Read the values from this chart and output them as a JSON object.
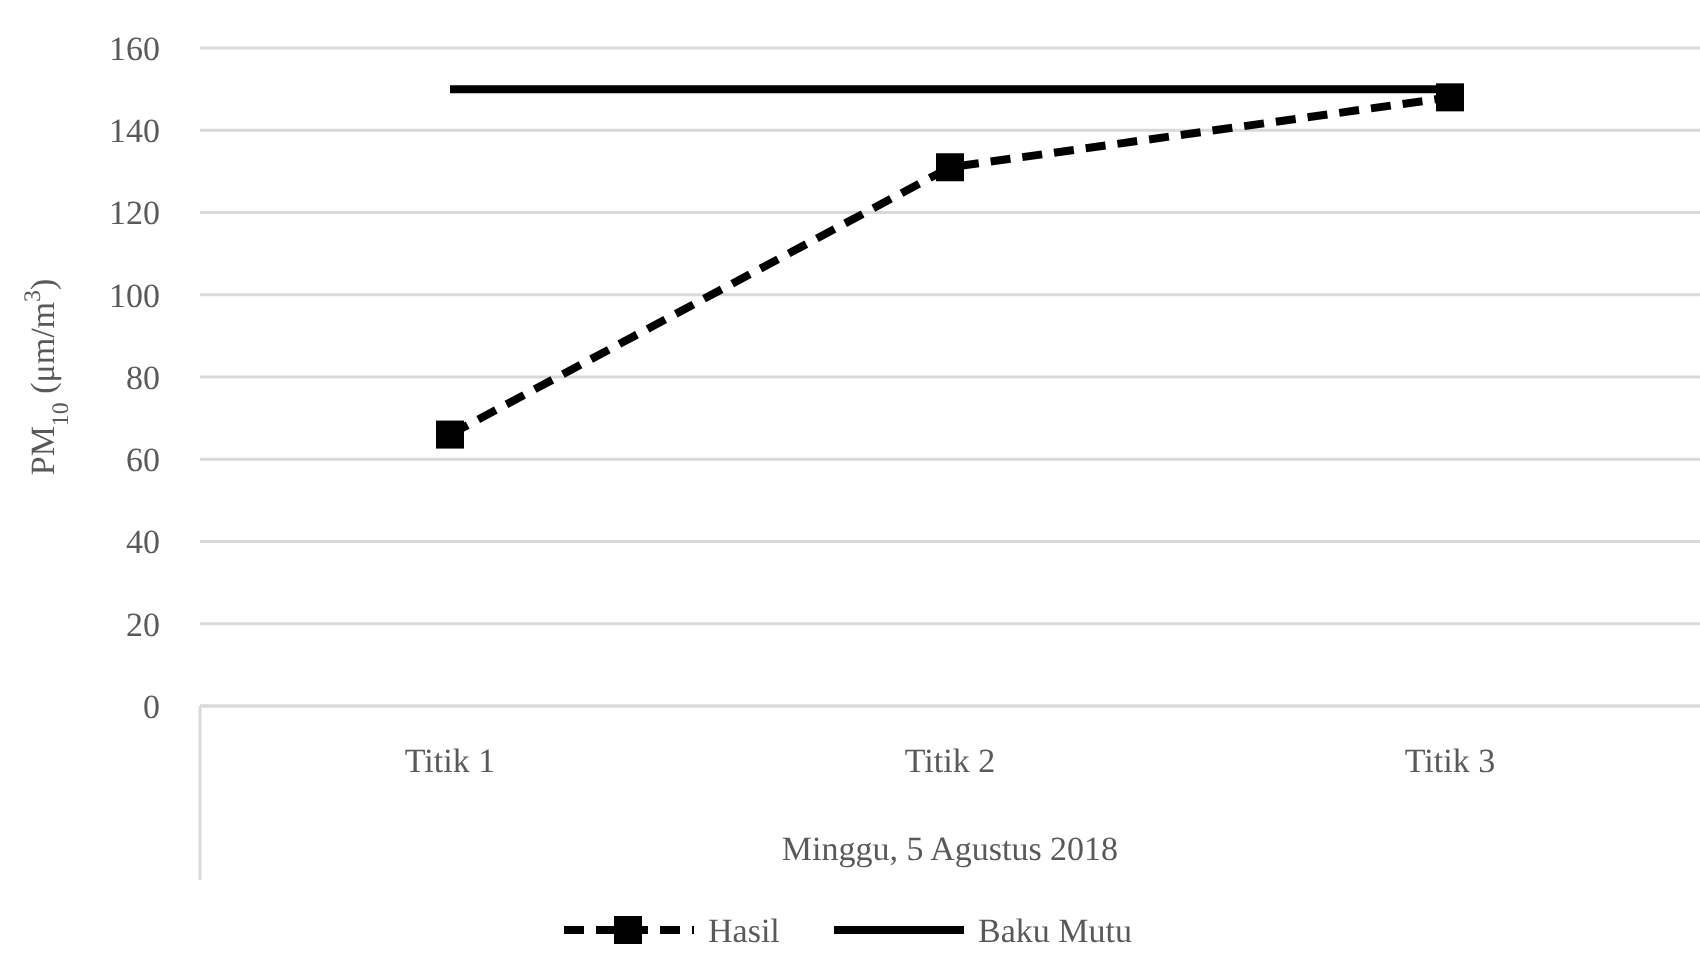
{
  "chart_data": {
    "type": "line",
    "categories": [
      "Titik 1",
      "Titik 2",
      "Titik 3"
    ],
    "xlabel": "Minggu, 5 Agustus 2018",
    "ylabel": "PM$_{10}$ (μm/m$^{3}$)",
    "ylim": [
      0,
      160
    ],
    "yticks": [
      0,
      20,
      40,
      60,
      80,
      100,
      120,
      140,
      160
    ],
    "grid": "y",
    "legend": "bottom",
    "series": [
      {
        "name": "Hasil",
        "color": "#000000",
        "values": [
          66,
          131,
          148
        ],
        "marker": "square",
        "line_style": "dashed"
      },
      {
        "name": "Baku Mutu",
        "color": "#000000",
        "values": [
          150,
          150,
          150
        ],
        "marker": "none",
        "line_style": "solid"
      }
    ]
  }
}
